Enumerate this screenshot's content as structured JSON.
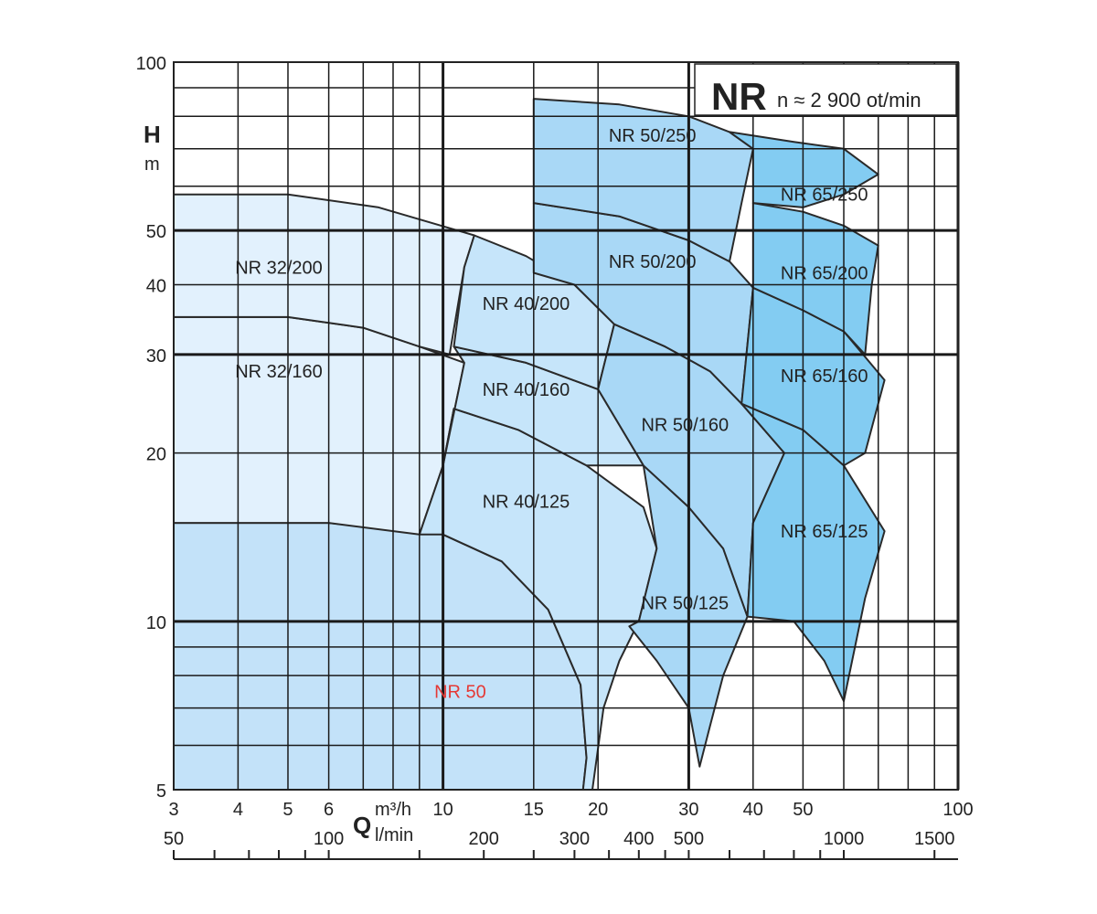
{
  "chart_data": {
    "type": "area",
    "title": "NR",
    "subtitle": "n ≈ 2 900 ot/min",
    "y_axis": {
      "label": "H",
      "unit": "m",
      "scale": "log",
      "range": [
        5,
        100
      ],
      "tick_labels": [
        "5",
        "10",
        "20",
        "30",
        "40",
        "50",
        "100"
      ],
      "tick_values": [
        5,
        10,
        20,
        30,
        40,
        50,
        100
      ],
      "grid_values": [
        5,
        6,
        7,
        8,
        9,
        10,
        20,
        30,
        40,
        50,
        60,
        70,
        80,
        90,
        100
      ]
    },
    "x_axis": {
      "label": "Q",
      "unit_primary": "m³/h",
      "unit_secondary": "l/min",
      "scale": "log",
      "range": [
        3,
        100
      ],
      "tick_labels": [
        "3",
        "4",
        "5",
        "6",
        "10",
        "15",
        "20",
        "30",
        "40",
        "50",
        "100"
      ],
      "tick_values": [
        3,
        4,
        5,
        6,
        10,
        15,
        20,
        30,
        40,
        50,
        100
      ],
      "grid_values": [
        3,
        4,
        5,
        6,
        7,
        8,
        9,
        10,
        15,
        20,
        30,
        40,
        50,
        60,
        70,
        80,
        90,
        100
      ],
      "secondary_tick_labels": [
        "50",
        "100",
        "200",
        "300",
        "400",
        "500",
        "1000",
        "1500"
      ],
      "secondary_tick_values": [
        50,
        100,
        200,
        300,
        400,
        500,
        1000,
        1500
      ],
      "secondary_minor_values": [
        50,
        60,
        70,
        80,
        90,
        100,
        150,
        200,
        250,
        300,
        350,
        400,
        450,
        500,
        600,
        700,
        800,
        900,
        1000,
        1500
      ]
    },
    "series": [
      {
        "name": "NR 50",
        "color": "#c3e2f9",
        "label_at": [
          10.8,
          7.5
        ],
        "highlight": true,
        "points": [
          [
            3,
            15
          ],
          [
            6,
            15
          ],
          [
            10,
            14.3
          ],
          [
            13,
            12.8
          ],
          [
            16,
            10.5
          ],
          [
            18.5,
            7.7
          ],
          [
            19,
            5.7
          ],
          [
            18.7,
            5
          ],
          [
            3,
            5
          ]
        ]
      },
      {
        "name": "NR 32/160",
        "color": "#e2f1fd",
        "label_at": [
          4.8,
          28
        ],
        "points": [
          [
            3,
            35
          ],
          [
            5,
            35
          ],
          [
            7,
            33.5
          ],
          [
            9,
            31
          ],
          [
            11,
            29
          ],
          [
            10,
            19
          ],
          [
            9,
            14.3
          ],
          [
            6,
            15
          ],
          [
            3,
            15
          ]
        ]
      },
      {
        "name": "NR 32/200",
        "color": "#e2f1fd",
        "label_at": [
          4.8,
          43
        ],
        "points": [
          [
            3,
            58
          ],
          [
            5,
            58
          ],
          [
            7.5,
            55
          ],
          [
            11.5,
            49
          ],
          [
            11,
            43
          ],
          [
            10.3,
            30
          ],
          [
            9,
            31
          ],
          [
            7,
            33.5
          ],
          [
            5,
            35
          ],
          [
            3,
            35
          ]
        ]
      },
      {
        "name": "NR 40/125",
        "color": "#c6e5fa",
        "label_at": [
          14.5,
          16.4
        ],
        "points": [
          [
            10.5,
            24
          ],
          [
            14,
            22
          ],
          [
            19,
            19
          ],
          [
            24.5,
            16
          ],
          [
            26,
            13.5
          ],
          [
            24,
            10
          ],
          [
            22,
            8.5
          ],
          [
            20.5,
            7
          ],
          [
            19.5,
            5
          ],
          [
            18.7,
            5
          ],
          [
            19,
            5.7
          ],
          [
            18.5,
            7.7
          ],
          [
            16,
            10.5
          ],
          [
            13,
            12.8
          ],
          [
            10,
            14.3
          ],
          [
            9,
            14.3
          ],
          [
            10,
            19
          ]
        ]
      },
      {
        "name": "NR 40/160",
        "color": "#c6e5fa",
        "label_at": [
          14.5,
          26
        ],
        "points": [
          [
            10.5,
            31
          ],
          [
            14.5,
            29
          ],
          [
            20,
            26
          ],
          [
            24.5,
            19
          ],
          [
            19,
            19
          ],
          [
            14,
            22
          ],
          [
            10.5,
            24
          ],
          [
            10,
            19
          ],
          [
            11,
            29
          ]
        ]
      },
      {
        "name": "NR 40/200",
        "color": "#c6e5fa",
        "label_at": [
          14.5,
          37
        ],
        "points": [
          [
            11.5,
            49
          ],
          [
            14.5,
            45
          ],
          [
            18,
            40
          ],
          [
            21.5,
            34
          ],
          [
            20,
            26
          ],
          [
            14.5,
            29
          ],
          [
            10.5,
            31
          ],
          [
            11,
            43
          ]
        ]
      },
      {
        "name": "NR 50/125",
        "color": "#a9d8f6",
        "label_at": [
          29.5,
          10.8
        ],
        "points": [
          [
            24.5,
            19
          ],
          [
            30,
            16
          ],
          [
            35,
            13.5
          ],
          [
            39,
            10.2
          ],
          [
            35,
            8
          ],
          [
            33,
            6.5
          ],
          [
            31.5,
            5.5
          ],
          [
            30,
            7
          ],
          [
            26,
            8.5
          ],
          [
            23,
            9.8
          ],
          [
            24,
            10
          ],
          [
            26,
            13.5
          ]
        ]
      },
      {
        "name": "NR 50/160",
        "color": "#a9d8f6",
        "label_at": [
          29.5,
          22.5
        ],
        "points": [
          [
            21.5,
            34
          ],
          [
            27,
            31
          ],
          [
            33,
            28
          ],
          [
            38,
            24.5
          ],
          [
            46,
            20
          ],
          [
            40,
            15
          ],
          [
            39,
            10.2
          ],
          [
            35,
            13.5
          ],
          [
            30,
            16
          ],
          [
            24.5,
            19
          ],
          [
            20,
            26
          ]
        ]
      },
      {
        "name": "NR 50/200",
        "color": "#a9d8f6",
        "label_at": [
          25.5,
          44
        ],
        "points": [
          [
            15,
            56
          ],
          [
            22,
            53
          ],
          [
            30,
            48
          ],
          [
            36,
            44
          ],
          [
            40,
            39.5
          ],
          [
            38,
            24.5
          ],
          [
            33,
            28
          ],
          [
            27,
            31
          ],
          [
            21.5,
            34
          ],
          [
            18,
            40
          ],
          [
            15,
            42
          ]
        ]
      },
      {
        "name": "NR 50/250",
        "color": "#a9d8f6",
        "label_at": [
          25.5,
          74
        ],
        "points": [
          [
            15,
            86
          ],
          [
            22,
            84
          ],
          [
            30,
            80
          ],
          [
            36,
            75
          ],
          [
            40,
            70
          ],
          [
            38,
            56
          ],
          [
            36,
            44
          ],
          [
            30,
            48
          ],
          [
            22,
            53
          ],
          [
            15,
            56
          ]
        ]
      },
      {
        "name": "NR 65/125",
        "color": "#83ccf2",
        "label_at": [
          55,
          14.5
        ],
        "points": [
          [
            38,
            24.5
          ],
          [
            50,
            22
          ],
          [
            60,
            19
          ],
          [
            72,
            14.5
          ],
          [
            66,
            11
          ],
          [
            60,
            7.2
          ],
          [
            55,
            8.5
          ],
          [
            48,
            10
          ],
          [
            39,
            10.2
          ],
          [
            40,
            15
          ],
          [
            46,
            20
          ]
        ]
      },
      {
        "name": "NR 65/160",
        "color": "#83ccf2",
        "label_at": [
          55,
          27.5
        ],
        "points": [
          [
            40,
            39.5
          ],
          [
            50,
            36
          ],
          [
            60,
            33
          ],
          [
            72,
            27
          ],
          [
            66,
            20
          ],
          [
            60,
            19
          ],
          [
            50,
            22
          ],
          [
            38,
            24.5
          ]
        ]
      },
      {
        "name": "NR 65/200",
        "color": "#83ccf2",
        "label_at": [
          55,
          42
        ],
        "points": [
          [
            40,
            56
          ],
          [
            50,
            54
          ],
          [
            60,
            51
          ],
          [
            70,
            47
          ],
          [
            68,
            40
          ],
          [
            66,
            30
          ],
          [
            60,
            33
          ],
          [
            50,
            36
          ],
          [
            40,
            39.5
          ]
        ]
      },
      {
        "name": "NR 65/250",
        "color": "#83ccf2",
        "label_at": [
          55,
          58
        ],
        "points": [
          [
            36,
            75
          ],
          [
            48,
            72
          ],
          [
            60,
            70
          ],
          [
            70,
            63
          ],
          [
            60,
            58
          ],
          [
            50,
            55
          ],
          [
            40,
            56
          ],
          [
            40,
            70
          ]
        ]
      }
    ]
  }
}
